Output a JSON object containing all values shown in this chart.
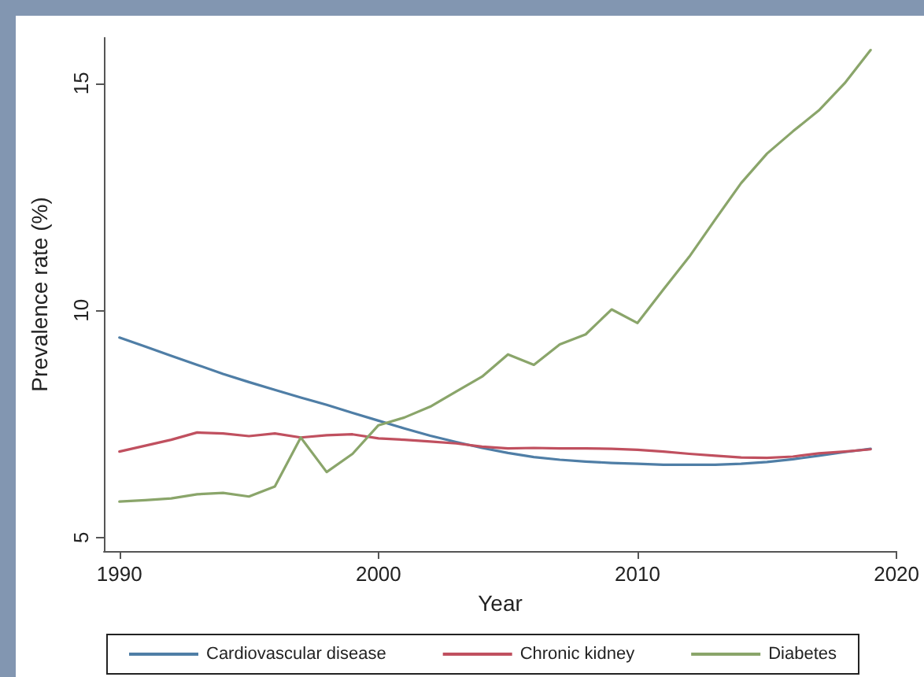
{
  "chart_data": {
    "type": "line",
    "xlabel": "Year",
    "ylabel": "Prevalence rate (%)",
    "x": [
      1990,
      1991,
      1992,
      1993,
      1994,
      1995,
      1996,
      1997,
      1998,
      1999,
      2000,
      2001,
      2002,
      2003,
      2004,
      2005,
      2006,
      2007,
      2008,
      2009,
      2010,
      2011,
      2012,
      2013,
      2014,
      2015,
      2016,
      2017,
      2018,
      2019
    ],
    "series": [
      {
        "name": "Cardiovascular disease",
        "color": "#4f7ea6",
        "values": [
          9.4,
          9.2,
          9.0,
          8.8,
          8.6,
          8.42,
          8.25,
          8.08,
          7.92,
          7.74,
          7.57,
          7.4,
          7.24,
          7.1,
          6.97,
          6.86,
          6.77,
          6.71,
          6.67,
          6.64,
          6.62,
          6.6,
          6.6,
          6.6,
          6.62,
          6.66,
          6.72,
          6.8,
          6.88,
          6.95
        ]
      },
      {
        "name": "Chronic kidney",
        "color": "#c0505f",
        "values": [
          6.89,
          7.02,
          7.15,
          7.31,
          7.29,
          7.23,
          7.29,
          7.2,
          7.25,
          7.27,
          7.18,
          7.15,
          7.11,
          7.07,
          7.0,
          6.96,
          6.97,
          6.96,
          6.96,
          6.95,
          6.93,
          6.89,
          6.84,
          6.8,
          6.76,
          6.75,
          6.78,
          6.85,
          6.89,
          6.94
        ]
      },
      {
        "name": "Diabetes",
        "color": "#8aa56a",
        "values": [
          5.79,
          5.82,
          5.86,
          5.95,
          5.98,
          5.9,
          6.12,
          7.2,
          6.44,
          6.84,
          7.47,
          7.64,
          7.88,
          8.21,
          8.54,
          9.03,
          8.8,
          9.25,
          9.47,
          10.02,
          9.72,
          10.46,
          11.18,
          12.0,
          12.8,
          13.45,
          13.94,
          14.4,
          15.0,
          15.73
        ]
      }
    ],
    "xlim": [
      1989.4,
      2020
    ],
    "xticks": [
      1990,
      2000,
      2010,
      2020
    ],
    "ylim": [
      4.7,
      16
    ],
    "yticks": [
      5,
      10,
      15
    ],
    "legend": "bottom",
    "marker": "none",
    "line_style": "solid"
  }
}
